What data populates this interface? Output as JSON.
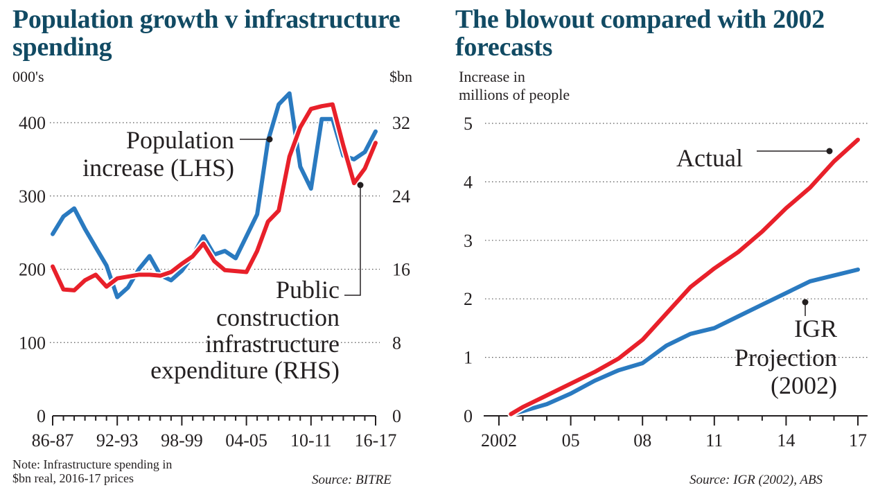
{
  "chart_data": [
    {
      "type": "line",
      "title": "Population growth v infrastructure spending",
      "y_left_label": "000's",
      "y_right_label": "$bn",
      "ylim_left": [
        0,
        400
      ],
      "ylim_right": [
        0,
        32
      ],
      "left_ticks": [
        "0",
        "100",
        "200",
        "300",
        "400"
      ],
      "right_ticks": [
        "0",
        "8",
        "16",
        "24",
        "32"
      ],
      "x_ticks": [
        "86-87",
        "92-93",
        "98-99",
        "04-05",
        "10-11",
        "16-17"
      ],
      "x": [
        "86-87",
        "87-88",
        "88-89",
        "89-90",
        "90-91",
        "91-92",
        "92-93",
        "93-94",
        "94-95",
        "95-96",
        "96-97",
        "97-98",
        "98-99",
        "99-00",
        "00-01",
        "01-02",
        "02-03",
        "03-04",
        "04-05",
        "05-06",
        "06-07",
        "07-08",
        "08-09",
        "09-10",
        "10-11",
        "11-12",
        "12-13",
        "13-14",
        "14-15",
        "15-16",
        "16-17"
      ],
      "grid": true,
      "series": [
        {
          "name": "Population increase (LHS)",
          "axis": "left",
          "color": "#2a7ac0",
          "values": [
            248,
            272,
            283,
            255,
            230,
            205,
            162,
            175,
            200,
            218,
            192,
            185,
            198,
            218,
            245,
            220,
            225,
            215,
            245,
            275,
            375,
            425,
            440,
            340,
            310,
            405,
            405,
            355,
            350,
            360,
            388
          ]
        },
        {
          "name": "Public construction infrastructure expenditure (RHS)",
          "axis": "right",
          "color": "#e8202a",
          "values": [
            16.3,
            13.8,
            13.7,
            14.8,
            15.4,
            14.1,
            15.0,
            15.2,
            15.4,
            15.4,
            15.3,
            15.7,
            16.6,
            17.4,
            18.8,
            16.9,
            15.9,
            15.8,
            15.7,
            18.0,
            21.2,
            22.4,
            28.3,
            31.5,
            33.5,
            33.8,
            34.0,
            29.5,
            25.4,
            27.0,
            29.8
          ]
        }
      ],
      "annotations": [
        {
          "lines": [
            "Population",
            "increase (LHS)"
          ]
        },
        {
          "lines": [
            "Public",
            "construction",
            "infrastructure",
            "expenditure (RHS)"
          ]
        }
      ],
      "note": [
        "Note: Infrastructure spending in",
        "$bn real, 2016-17 prices"
      ],
      "source": "Source: BITRE"
    },
    {
      "type": "line",
      "title": "The blowout compared with 2002 forecasts",
      "ylabel": [
        "Increase in",
        "millions of people"
      ],
      "ylim": [
        0,
        5
      ],
      "y_ticks": [
        "0",
        "1",
        "2",
        "3",
        "4",
        "5"
      ],
      "x_ticks": [
        "2002",
        "05",
        "08",
        "11",
        "14",
        "17"
      ],
      "x_tick_years": [
        2002,
        2005,
        2008,
        2011,
        2014,
        2017
      ],
      "grid": true,
      "series": [
        {
          "name": "Actual",
          "color": "#e8202a",
          "x": [
            2002.5,
            2003,
            2004,
            2005,
            2006,
            2007,
            2008,
            2009,
            2010,
            2011,
            2012,
            2013,
            2014,
            2015,
            2016,
            2017
          ],
          "values": [
            0.03,
            0.15,
            0.35,
            0.55,
            0.75,
            0.98,
            1.3,
            1.75,
            2.2,
            2.52,
            2.8,
            3.15,
            3.55,
            3.9,
            4.35,
            4.72
          ]
        },
        {
          "name": "IGR Projection (2002)",
          "color": "#2a7ac0",
          "x": [
            2002.5,
            2003,
            2004,
            2005,
            2006,
            2007,
            2008,
            2009,
            2010,
            2011,
            2012,
            2013,
            2014,
            2015,
            2016,
            2017
          ],
          "values": [
            0.03,
            0.08,
            0.2,
            0.38,
            0.6,
            0.78,
            0.9,
            1.2,
            1.4,
            1.5,
            1.7,
            1.9,
            2.1,
            2.3,
            2.4,
            2.5
          ]
        }
      ],
      "annotations": [
        {
          "lines": [
            "Actual"
          ]
        },
        {
          "lines": [
            "IGR",
            "Projection",
            "(2002)"
          ]
        }
      ],
      "source": "Source: IGR (2002), ABS"
    }
  ]
}
